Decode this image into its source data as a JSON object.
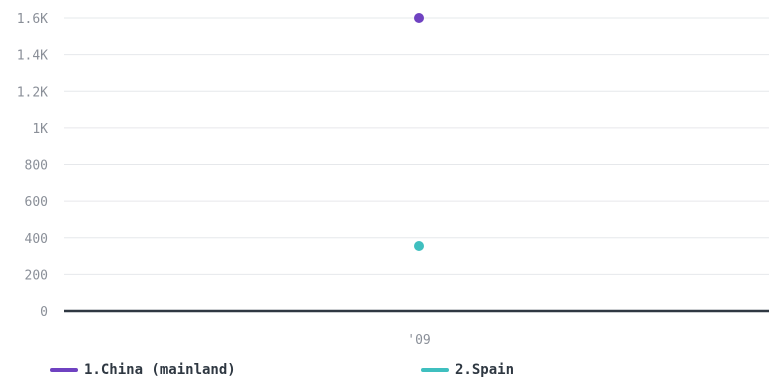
{
  "chart_data": {
    "type": "scatter",
    "x": [
      "'09"
    ],
    "series": [
      {
        "name": "1.China (mainland)",
        "color": "#6f42c1",
        "values": [
          1600
        ]
      },
      {
        "name": "2.Spain",
        "color": "#3fbfbf",
        "values": [
          355
        ]
      }
    ],
    "y_ticks": [
      0,
      200,
      400,
      600,
      800,
      1000,
      1200,
      1400,
      1600
    ],
    "y_tick_labels": [
      "0",
      "200",
      "400",
      "600",
      "800",
      "1K",
      "1.2K",
      "1.4K",
      "1.6K"
    ],
    "x_tick_labels": [
      "'09"
    ],
    "ylim": [
      0,
      1600
    ],
    "grid": true,
    "legend_position": "bottom"
  }
}
